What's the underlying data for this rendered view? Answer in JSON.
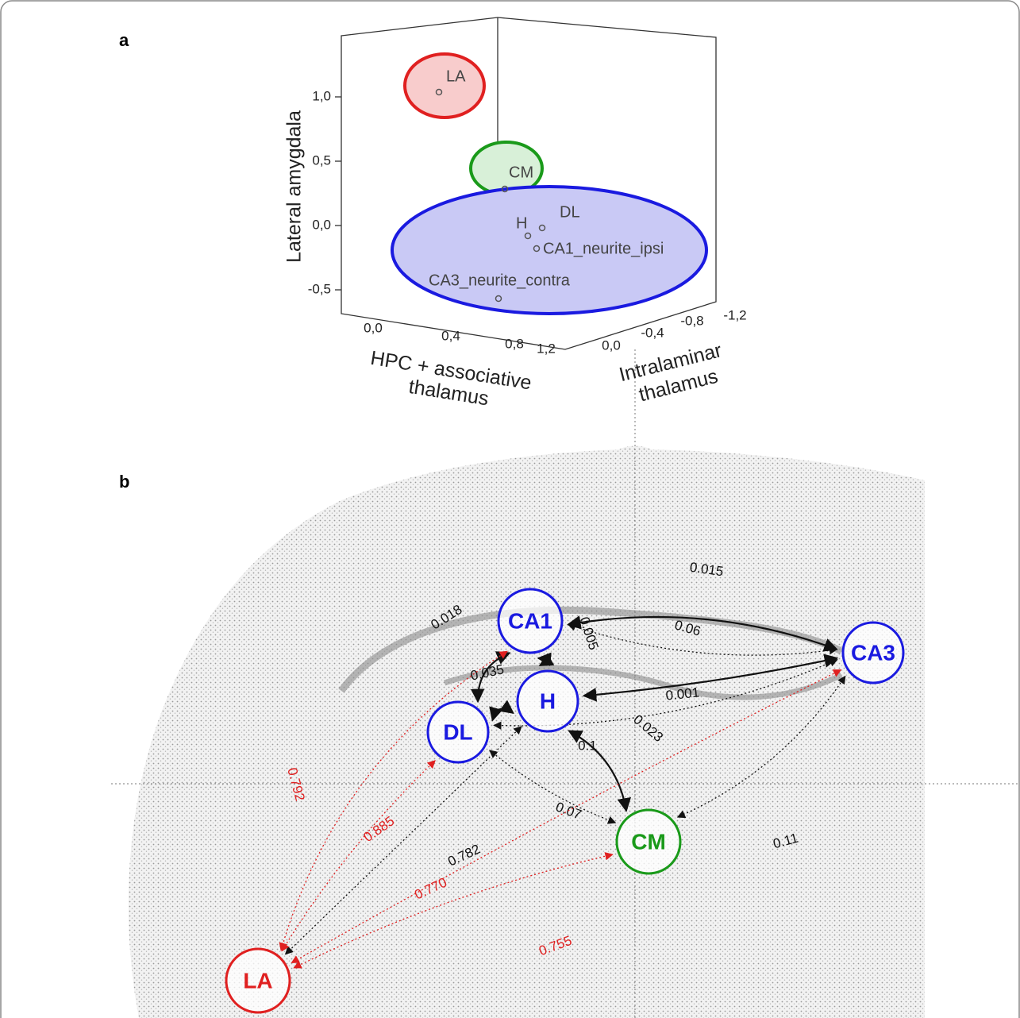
{
  "panel_a": {
    "label": "a",
    "y_axis_label": "Lateral amygdala",
    "x_axis_label": [
      "HPC + associative",
      "thalamus"
    ],
    "z_axis_label": [
      "Intralaminar",
      "thalamus"
    ],
    "y_ticks": [
      "1,0",
      "0,5",
      "0,0",
      "-0,5"
    ],
    "x_ticks": [
      "0,0",
      "0,4",
      "0,8",
      "1,2"
    ],
    "z_ticks": [
      "0,0",
      "-0,4",
      "-0,8",
      "-1,2"
    ],
    "points": [
      {
        "label": "LA"
      },
      {
        "label": "CM"
      },
      {
        "label": "H"
      },
      {
        "label": "DL"
      },
      {
        "label": "CA1_neurite_ipsi"
      },
      {
        "label": "CA3_neurite_contra"
      }
    ]
  },
  "panel_b": {
    "label": "b",
    "nodes": [
      {
        "label": "CA1"
      },
      {
        "label": "CA3"
      },
      {
        "label": "H"
      },
      {
        "label": "DL"
      },
      {
        "label": "CM"
      },
      {
        "label": "LA"
      }
    ],
    "edges": [
      {
        "label": "0.015"
      },
      {
        "label": "0.018"
      },
      {
        "label": "0.005"
      },
      {
        "label": "0.035"
      },
      {
        "label": "0.06"
      },
      {
        "label": "0.001"
      },
      {
        "label": "0.023"
      },
      {
        "label": "0.1"
      },
      {
        "label": "0.07"
      },
      {
        "label": "0.11"
      },
      {
        "label": "0.782"
      },
      {
        "label": "0.792"
      },
      {
        "label": "0.885"
      },
      {
        "label": "0.770"
      },
      {
        "label": "0.755"
      }
    ]
  }
}
